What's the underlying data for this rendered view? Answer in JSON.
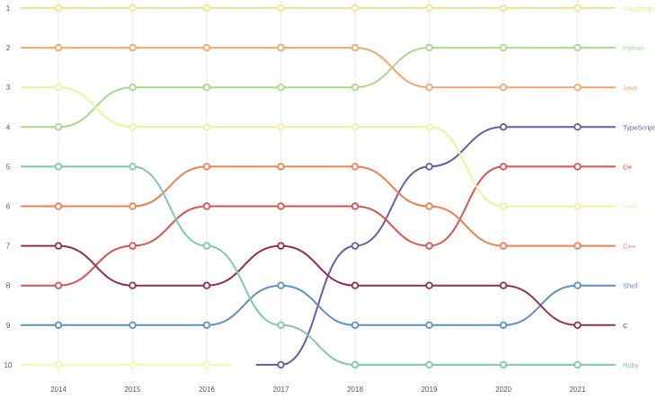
{
  "chart_data": {
    "type": "line",
    "subtype": "bump",
    "title": "",
    "xlabel": "",
    "ylabel": "",
    "x": [
      "2014",
      "2015",
      "2016",
      "2017",
      "2018",
      "2019",
      "2020",
      "2021"
    ],
    "y_ticks": [
      "1",
      "2",
      "3",
      "4",
      "5",
      "6",
      "7",
      "8",
      "9",
      "10"
    ],
    "ylim": [
      1,
      10
    ],
    "y_inverted": true,
    "grid": true,
    "legend": "labels at right end of each line",
    "series": [
      {
        "name": "JavaScript",
        "color": "#f2e394",
        "values": [
          1,
          1,
          1,
          1,
          1,
          1,
          1,
          1
        ]
      },
      {
        "name": "Python",
        "color": "#a8d88e",
        "values": [
          4,
          3,
          3,
          3,
          3,
          2,
          2,
          2
        ]
      },
      {
        "name": "Java",
        "color": "#f2a86a",
        "values": [
          2,
          2,
          2,
          2,
          2,
          3,
          3,
          3
        ]
      },
      {
        "name": "TypeScript",
        "color": "#6a5aa8",
        "values": [
          null,
          null,
          null,
          10,
          7,
          5,
          4,
          4
        ]
      },
      {
        "name": "C#",
        "color": "#d9534f",
        "values": [
          8,
          7,
          6,
          6,
          6,
          7,
          5,
          5
        ]
      },
      {
        "name": "PHP",
        "color": "#f0f09a",
        "values": [
          3,
          4,
          4,
          4,
          4,
          4,
          6,
          6
        ]
      },
      {
        "name": "C++",
        "color": "#ee7f54",
        "values": [
          6,
          6,
          5,
          5,
          5,
          6,
          7,
          7
        ]
      },
      {
        "name": "Shell",
        "color": "#5b8ec2",
        "values": [
          9,
          9,
          9,
          8,
          9,
          9,
          9,
          8
        ]
      },
      {
        "name": "C",
        "color": "#952d4f",
        "values": [
          7,
          8,
          8,
          7,
          8,
          8,
          8,
          9
        ]
      },
      {
        "name": "Ruby",
        "color": "#7ec8ae",
        "values": [
          5,
          5,
          7,
          9,
          10,
          10,
          10,
          10
        ]
      },
      {
        "name": "",
        "color": "#f7f7a8",
        "values": [
          10,
          10,
          10,
          null,
          null,
          null,
          null,
          null
        ]
      }
    ]
  }
}
